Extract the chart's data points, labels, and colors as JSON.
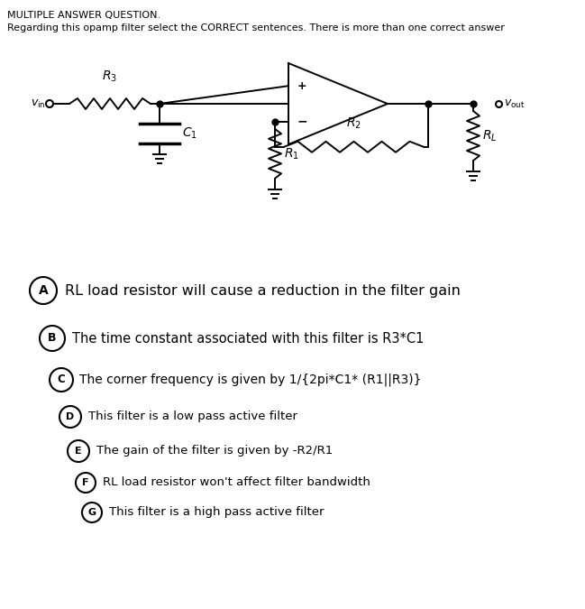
{
  "title_line1": "MULTIPLE ANSWER QUESTION.",
  "title_line2": "Regarding this opamp filter select the CORRECT sentences. There is more than one correct answer",
  "answers": [
    {
      "label": "A",
      "text": "RL load resistor will cause a reduction in the filter gain",
      "fontsize": 11.5,
      "fw": "normal"
    },
    {
      "label": "B",
      "text": "The time constant associated with this filter is R3*C1",
      "fontsize": 10.5,
      "fw": "normal"
    },
    {
      "label": "C",
      "text": "The corner frequency is given by 1/{2pi*C1* (R1||R3)}",
      "fontsize": 10.0,
      "fw": "normal"
    },
    {
      "label": "D",
      "text": "This filter is a low pass active filter",
      "fontsize": 10.0,
      "fw": "normal"
    },
    {
      "label": "E",
      "text": "The gain of the filter is given by -R2/R1",
      "fontsize": 10.0,
      "fw": "normal"
    },
    {
      "label": "F",
      "text": "RL load resistor won't affect filter bandwidth",
      "fontsize": 9.5,
      "fw": "normal"
    },
    {
      "label": "G",
      "text": "This filter is a high pass active filter",
      "fontsize": 9.5,
      "fw": "normal"
    }
  ],
  "bg_color": "#ffffff",
  "text_color": "#000000"
}
